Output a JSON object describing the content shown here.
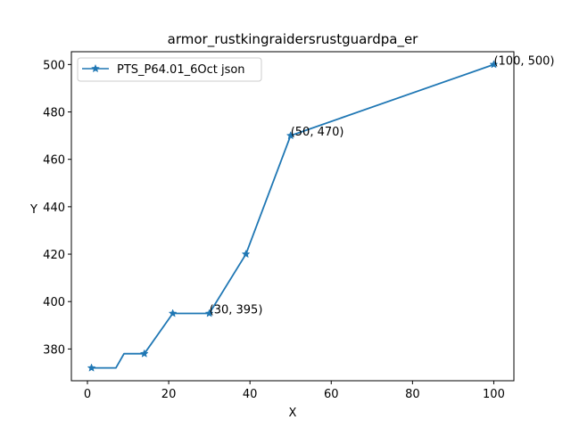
{
  "chart_data": {
    "type": "line",
    "title": "armor_rustkingraidersrustguardpa_er",
    "xlabel": "X",
    "ylabel": "Y",
    "xlim": [
      -3.95,
      104.95
    ],
    "ylim": [
      366.6,
      505.4
    ],
    "xticks": [
      0,
      20,
      40,
      60,
      80,
      100
    ],
    "yticks": [
      380,
      400,
      420,
      440,
      460,
      480,
      500
    ],
    "grid": false,
    "legend_position": "upper-left",
    "series": [
      {
        "name": "PTS_P64.01_6Oct json",
        "color": "#1f77b4",
        "marker": "star",
        "x": [
          1,
          7,
          9,
          14,
          21,
          30,
          39,
          50,
          100
        ],
        "y": [
          372,
          372,
          378,
          378,
          395,
          395,
          420,
          470,
          500
        ],
        "marker_indices": [
          0,
          3,
          4,
          5,
          6,
          7,
          8
        ]
      }
    ],
    "annotations": [
      {
        "text": "(30, 395)",
        "x": 30,
        "y": 395
      },
      {
        "text": "(50, 470)",
        "x": 50,
        "y": 470
      },
      {
        "text": "(100, 500)",
        "x": 100,
        "y": 500
      }
    ]
  }
}
